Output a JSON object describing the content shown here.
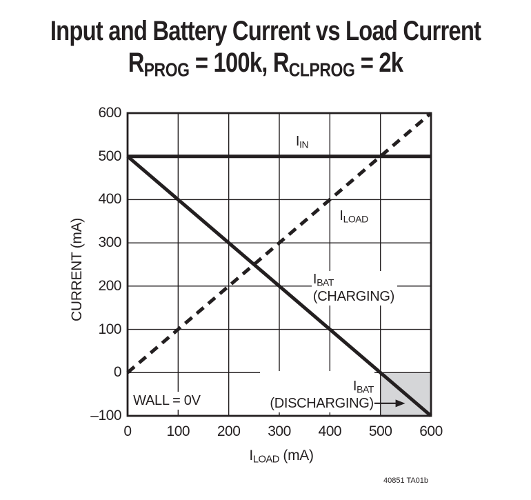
{
  "title": {
    "line1": "Input and Battery Current vs Load Current",
    "line2": "RPROG = 100k, RCLPROG = 2k",
    "line2_parts": [
      {
        "t": "R"
      },
      {
        "t": "PROG",
        "sub": true
      },
      {
        "t": " = 100k, R"
      },
      {
        "t": "CLPROG",
        "sub": true
      },
      {
        "t": " = 2k"
      }
    ]
  },
  "footnote": "40851 TA01b",
  "colors": {
    "ink": "#231f20",
    "grid": "#231f20",
    "shade": "#d5d6d8",
    "background": "#ffffff"
  },
  "chart_data": {
    "type": "line",
    "title": "Input and Battery Current vs Load Current",
    "subtitle": "RPROG = 100k, RCLPROG = 2k",
    "xlabel": "ILOAD (mA)",
    "xlabel_parts": [
      {
        "t": "I"
      },
      {
        "t": "LOAD",
        "sub": true
      },
      {
        "t": " (mA)"
      }
    ],
    "ylabel": "CURRENT (mA)",
    "xlim": [
      0,
      600
    ],
    "ylim": [
      -100,
      600
    ],
    "xticks": [
      0,
      100,
      200,
      300,
      400,
      500,
      600
    ],
    "yticks": [
      600,
      500,
      400,
      300,
      200,
      100,
      0,
      -100
    ],
    "grid": true,
    "legend_position": "in-plot annotations",
    "series": [
      {
        "id": "iin",
        "name": "IIN",
        "style": "solid",
        "points": [
          [
            0,
            500
          ],
          [
            600,
            500
          ]
        ]
      },
      {
        "id": "iload",
        "name": "ILOAD",
        "style": "dashed",
        "points": [
          [
            0,
            0
          ],
          [
            600,
            600
          ]
        ]
      },
      {
        "id": "ibat",
        "name": "IBAT",
        "style": "solid",
        "points": [
          [
            0,
            500
          ],
          [
            600,
            -100
          ]
        ]
      }
    ],
    "shaded_region": {
      "x": [
        500,
        600
      ],
      "y": [
        -100,
        0
      ],
      "meaning": "IBAT (DISCHARGING)"
    },
    "annotations": [
      {
        "id": "iin",
        "align": "center",
        "x": 345,
        "y": 554,
        "lines": [
          [
            {
              "t": "I"
            },
            {
              "t": "IN",
              "sub": true
            }
          ]
        ]
      },
      {
        "id": "iload",
        "align": "left",
        "x": 415,
        "y": 381,
        "lines": [
          [
            {
              "t": "I"
            },
            {
              "t": "LOAD",
              "sub": true
            }
          ]
        ]
      },
      {
        "id": "ibat-charging",
        "align": "left",
        "x": 364,
        "y": 235,
        "lines": [
          [
            {
              "t": "I"
            },
            {
              "t": "BAT",
              "sub": true
            }
          ],
          [
            {
              "t": "(CHARGING)"
            }
          ]
        ]
      },
      {
        "id": "ibat-discharging",
        "align": "right",
        "x": 488,
        "y": 4,
        "lines": [
          [
            {
              "t": "I"
            },
            {
              "t": "BAT",
              "sub": true
            }
          ],
          [
            {
              "t": "(DISCHARGING)"
            }
          ]
        ]
      },
      {
        "id": "wall",
        "align": "left",
        "x": 7,
        "y": -44,
        "lines": [
          [
            {
              "t": "WALL = 0V"
            }
          ]
        ]
      }
    ],
    "arrow": {
      "x1": 488,
      "y1": -71,
      "x2": 549,
      "y2": -71
    }
  }
}
